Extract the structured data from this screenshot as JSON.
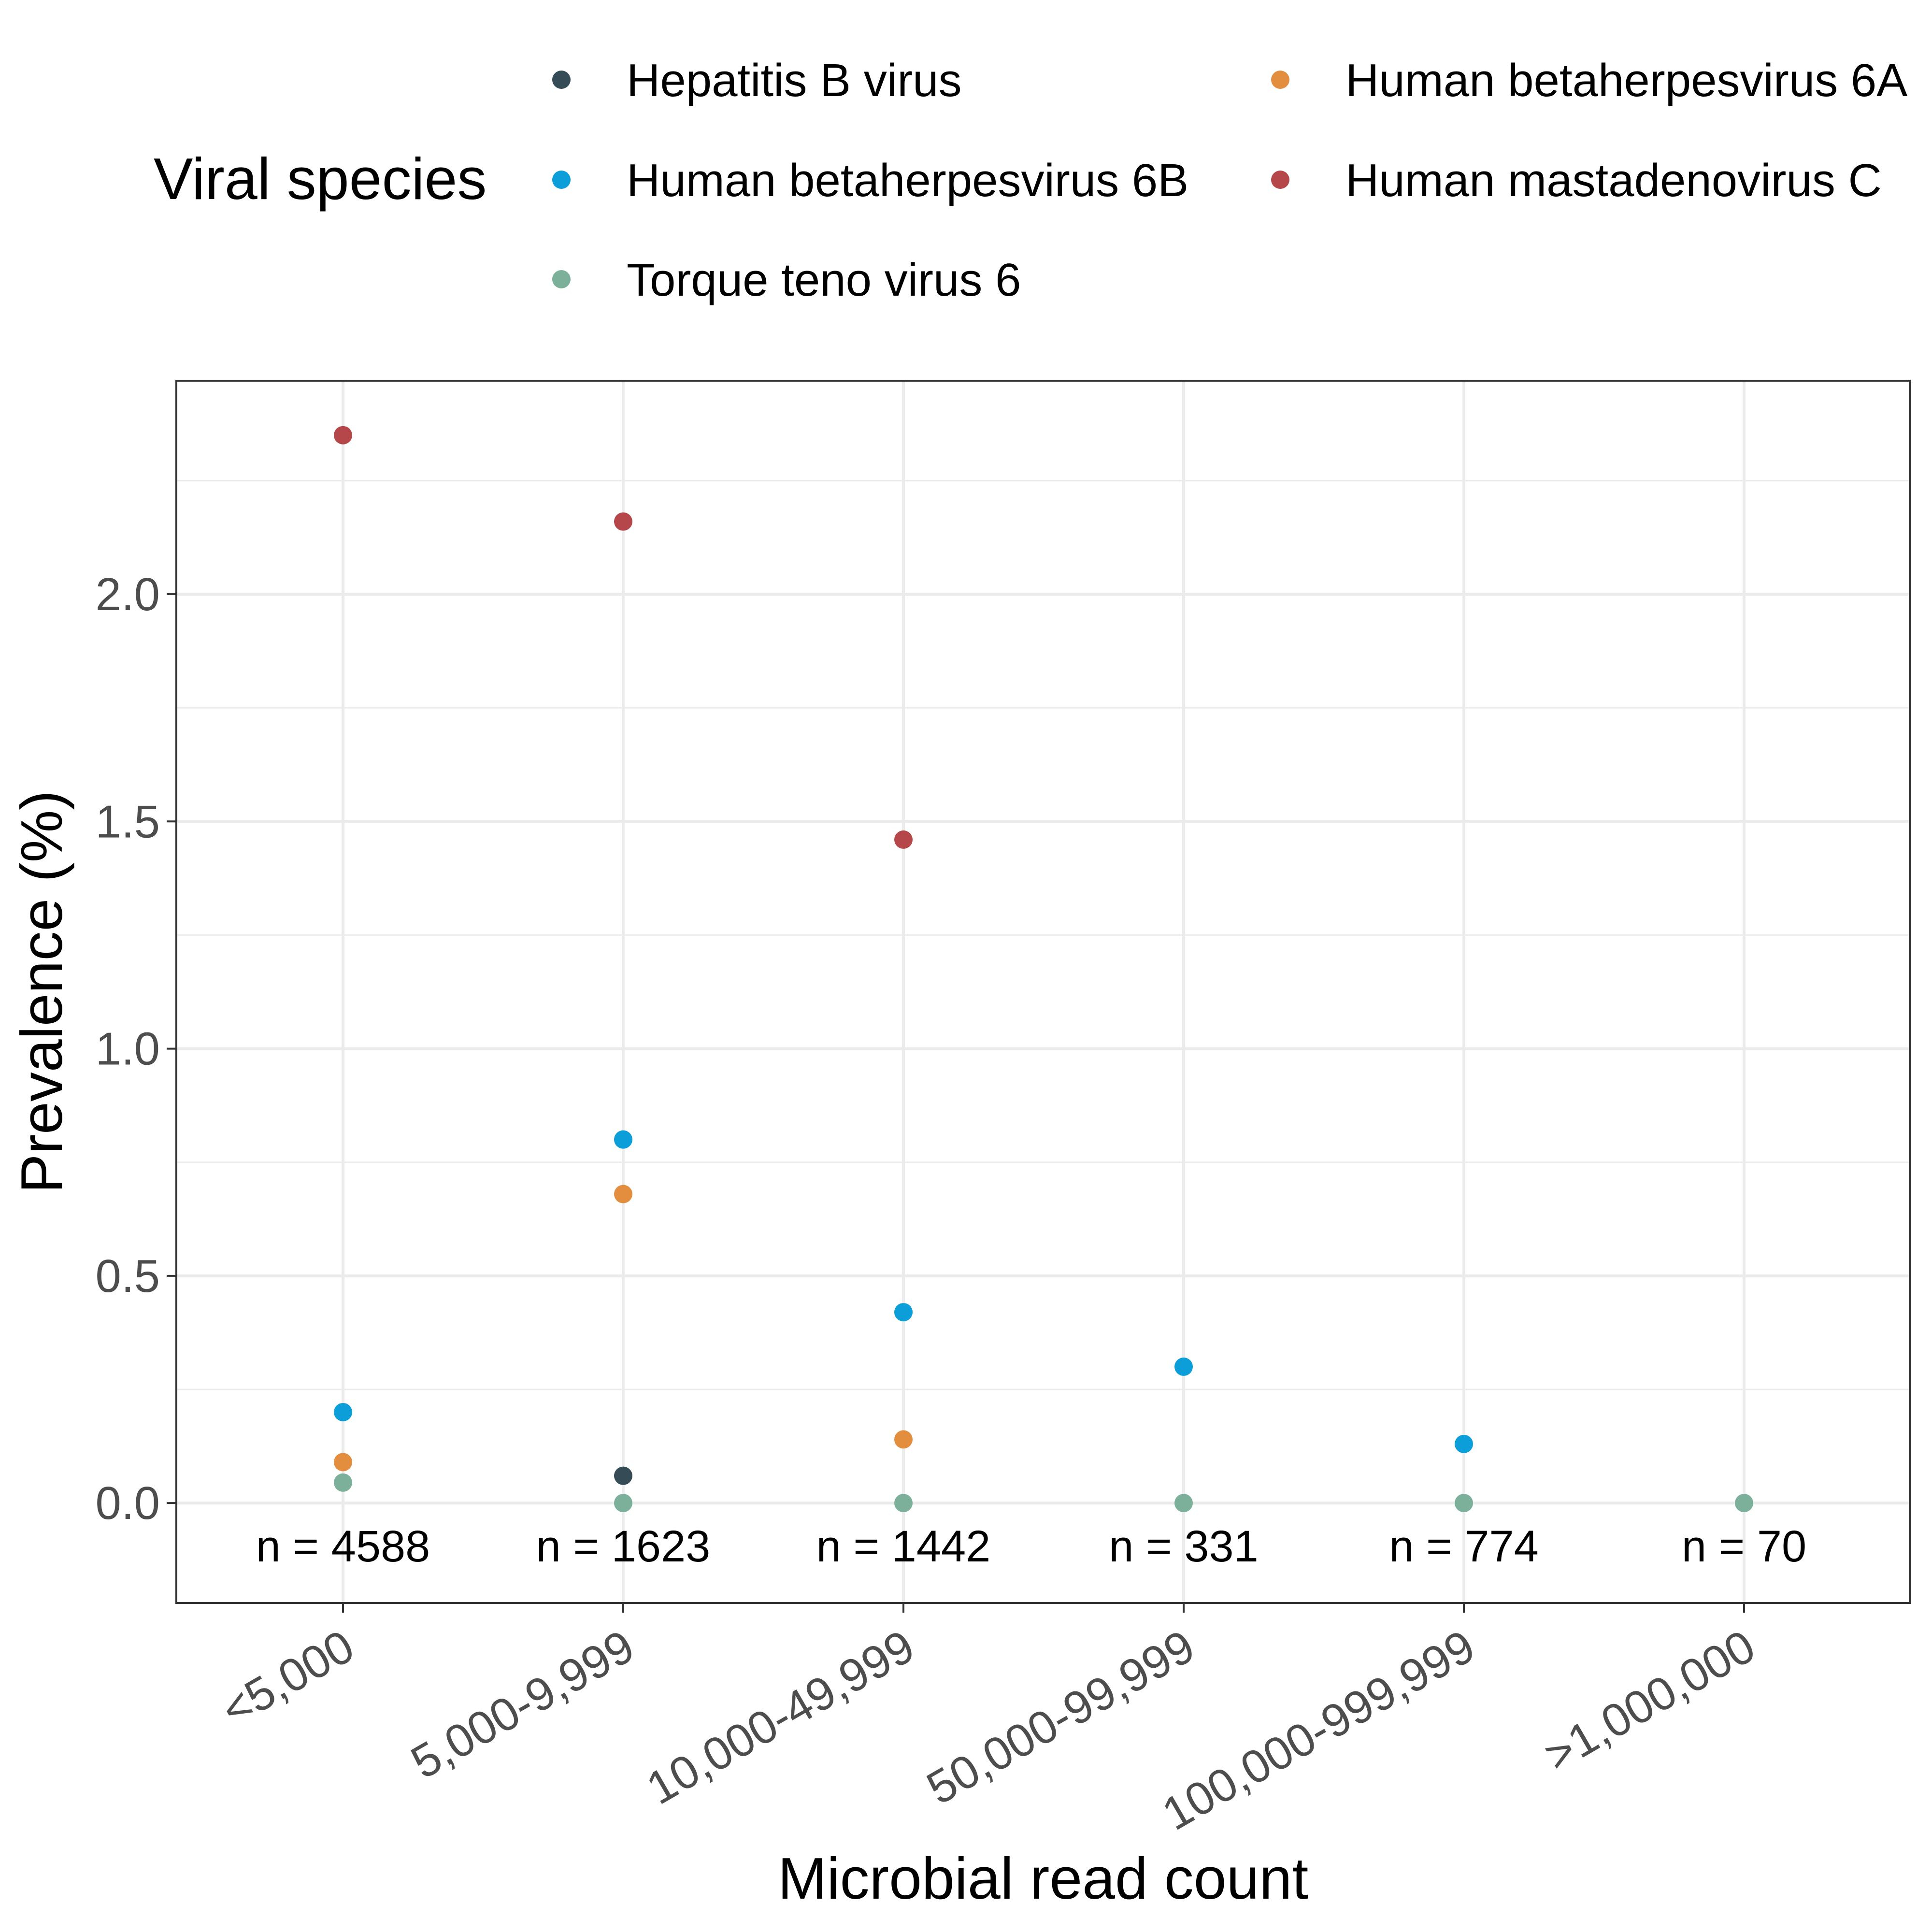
{
  "chart_data": {
    "type": "scatter",
    "xlabel": "Microbial read count",
    "ylabel": "Prevalence (%)",
    "legend_title": "Viral species",
    "legend_position": "top",
    "grid": true,
    "ylim": [
      -0.22,
      2.47
    ],
    "y_ticks": [
      "0.0",
      "0.5",
      "1.0",
      "1.5",
      "2.0"
    ],
    "categories": [
      "<5,000",
      "5,000-9,999",
      "10,000-49,999",
      "50,000-99,999",
      "100,000-999,999",
      ">1,000,000"
    ],
    "sample_sizes": [
      "n = 4588",
      "n = 1623",
      "n = 1442",
      "n = 331",
      "n = 774",
      "n = 70"
    ],
    "series": [
      {
        "name": "Hepatitis B virus",
        "color": "#354b55",
        "values": [
          null,
          0.06,
          null,
          null,
          null,
          null
        ]
      },
      {
        "name": "Human betaherpesvirus 6A",
        "color": "#e38e3f",
        "values": [
          0.09,
          0.68,
          0.14,
          null,
          null,
          null
        ]
      },
      {
        "name": "Human betaherpesvirus 6B",
        "color": "#0b9ed8",
        "values": [
          0.2,
          0.8,
          0.42,
          0.3,
          0.13,
          null
        ]
      },
      {
        "name": "Human mastadenovirus C",
        "color": "#b5474a",
        "values": [
          2.35,
          2.16,
          1.46,
          null,
          null,
          null
        ]
      },
      {
        "name": "Torque teno virus 6",
        "color": "#7cb09a",
        "values": [
          0.045,
          0.0,
          0.0,
          0.0,
          0.0,
          0.0
        ]
      }
    ],
    "legend_order": [
      0,
      1,
      2,
      3,
      4
    ]
  }
}
